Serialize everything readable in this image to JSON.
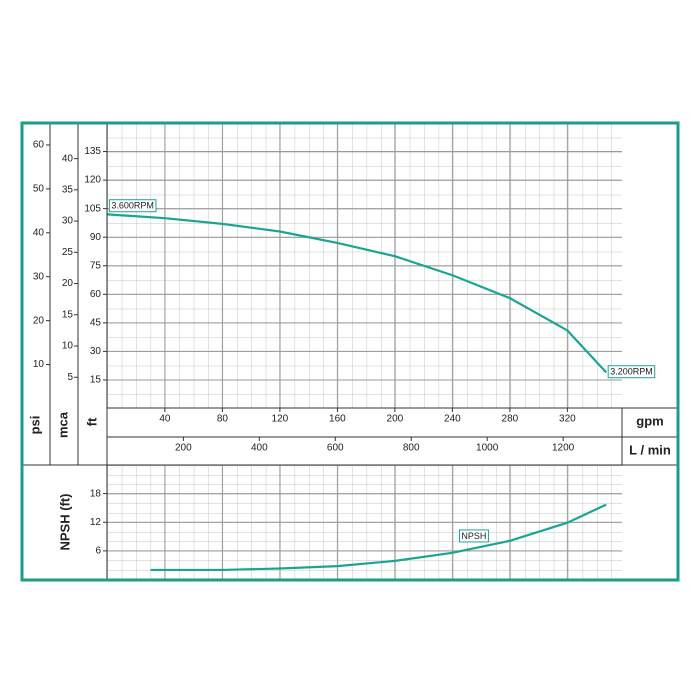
{
  "chart_data": [
    {
      "type": "line",
      "x": [
        0,
        40,
        80,
        120,
        160,
        200,
        240,
        280,
        320,
        347
      ],
      "series": [
        {
          "color": "#1aa593",
          "values": [
            102,
            100,
            97,
            93,
            87,
            80,
            70,
            58,
            41,
            19
          ]
        }
      ],
      "annotations": [
        "3.600RPM",
        "3.200RPM"
      ],
      "xlim": [
        0,
        358
      ],
      "xticks": [
        40,
        80,
        120,
        160,
        200,
        240,
        280,
        320
      ],
      "x_label": "gpm",
      "x2lim": [
        0,
        1355
      ],
      "x2ticks": [
        200,
        400,
        600,
        800,
        1000,
        1200
      ],
      "x2_label": "L / min",
      "ylim": [
        0,
        150
      ],
      "yticks": [
        15,
        30,
        45,
        60,
        75,
        90,
        105,
        120,
        135
      ],
      "y_label": "ft",
      "y2lim": [
        0,
        65
      ],
      "y2ticks": [
        10,
        20,
        30,
        40,
        50,
        60
      ],
      "y2_label": "psi",
      "y3lim": [
        0,
        45.7
      ],
      "y3ticks": [
        5,
        10,
        15,
        20,
        25,
        30,
        35,
        40
      ],
      "y3_label": "mca",
      "grid": true
    },
    {
      "type": "line",
      "x": [
        30,
        80,
        120,
        160,
        200,
        240,
        280,
        320,
        347
      ],
      "series": [
        {
          "name": "NPSH",
          "color": "#1aa593",
          "values": [
            2,
            2,
            2.3,
            2.8,
            3.9,
            5.6,
            8.1,
            11.9,
            15.7
          ]
        }
      ],
      "xlim": [
        0,
        358
      ],
      "ylim": [
        0,
        24
      ],
      "yticks": [
        6,
        12,
        18
      ],
      "y_label": "NPSH (ft)",
      "grid": true
    }
  ]
}
